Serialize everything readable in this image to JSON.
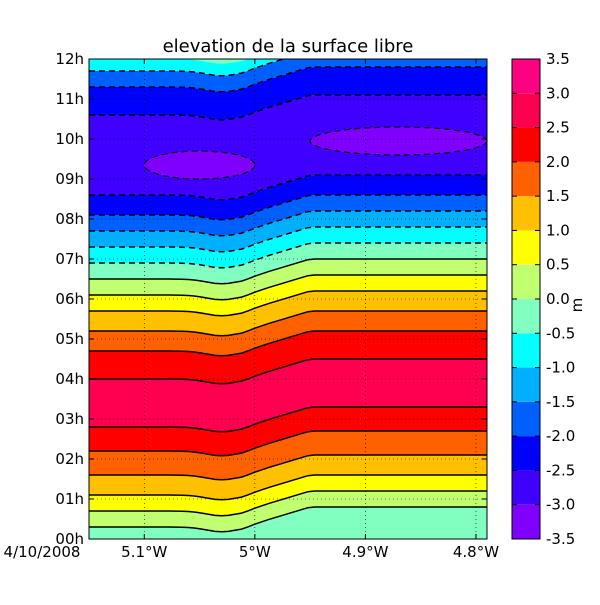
{
  "chart_data": {
    "type": "heatmap",
    "title": "elevation de la surface libre",
    "x_ticks": [
      "5.1°W",
      "5°W",
      "4.9°W",
      "4.8°W"
    ],
    "y_ticks": [
      "00h",
      "01h",
      "02h",
      "03h",
      "04h",
      "05h",
      "06h",
      "07h",
      "08h",
      "09h",
      "10h",
      "11h",
      "12h"
    ],
    "x_corner_label": "4/10/2008",
    "colorbar": {
      "label": "m",
      "ticks": [
        "3.5",
        "3.0",
        "2.5",
        "2.0",
        "1.5",
        "1.0",
        "0.5",
        "0.0",
        "-0.5",
        "-1.0",
        "-1.5",
        "-2.0",
        "-2.5",
        "-3.0",
        "-3.5"
      ],
      "levels": [
        {
          "range": [
            -3.5,
            -3.0
          ],
          "color": "#8000ff"
        },
        {
          "range": [
            -3.0,
            -2.5
          ],
          "color": "#4000ff"
        },
        {
          "range": [
            -2.5,
            -2.0
          ],
          "color": "#0000ff"
        },
        {
          "range": [
            -2.0,
            -1.5
          ],
          "color": "#0060ff"
        },
        {
          "range": [
            -1.5,
            -1.0
          ],
          "color": "#00b0ff"
        },
        {
          "range": [
            -1.0,
            -0.5
          ],
          "color": "#00ffff"
        },
        {
          "range": [
            -0.5,
            0.0
          ],
          "color": "#80ffc0"
        },
        {
          "range": [
            0.0,
            0.5
          ],
          "color": "#c0ff70"
        },
        {
          "range": [
            0.5,
            1.0
          ],
          "color": "#ffff00"
        },
        {
          "range": [
            1.0,
            1.5
          ],
          "color": "#ffc000"
        },
        {
          "range": [
            1.5,
            2.0
          ],
          "color": "#ff6000"
        },
        {
          "range": [
            2.0,
            2.5
          ],
          "color": "#ff0000"
        },
        {
          "range": [
            2.5,
            3.0
          ],
          "color": "#ff0050"
        },
        {
          "range": [
            3.0,
            3.5
          ],
          "color": "#ff0080"
        }
      ]
    },
    "time_axis_hours": [
      0,
      12
    ],
    "x_axis_deg_west": [
      5.15,
      4.79
    ],
    "elevation_bands_by_time": [
      {
        "t_hours": [
          0.0,
          0.3
        ],
        "value_range": [
          -0.5,
          0.0
        ]
      },
      {
        "t_hours": [
          0.3,
          0.7
        ],
        "value_range": [
          0.0,
          0.5
        ]
      },
      {
        "t_hours": [
          0.7,
          1.1
        ],
        "value_range": [
          0.5,
          1.0
        ]
      },
      {
        "t_hours": [
          1.1,
          1.6
        ],
        "value_range": [
          1.0,
          1.5
        ]
      },
      {
        "t_hours": [
          1.6,
          2.2
        ],
        "value_range": [
          1.5,
          2.0
        ]
      },
      {
        "t_hours": [
          2.2,
          2.8
        ],
        "value_range": [
          2.0,
          2.5
        ]
      },
      {
        "t_hours": [
          2.8,
          4.0
        ],
        "value_range": [
          2.5,
          3.0
        ]
      },
      {
        "t_hours": [
          4.0,
          4.7
        ],
        "value_range": [
          2.0,
          2.5
        ]
      },
      {
        "t_hours": [
          4.7,
          5.2
        ],
        "value_range": [
          1.5,
          2.0
        ]
      },
      {
        "t_hours": [
          5.2,
          5.7
        ],
        "value_range": [
          1.0,
          1.5
        ]
      },
      {
        "t_hours": [
          5.7,
          6.1
        ],
        "value_range": [
          0.5,
          1.0
        ]
      },
      {
        "t_hours": [
          6.1,
          6.5
        ],
        "value_range": [
          0.0,
          0.5
        ]
      },
      {
        "t_hours": [
          6.5,
          6.9
        ],
        "value_range": [
          -0.5,
          0.0
        ]
      },
      {
        "t_hours": [
          6.9,
          7.3
        ],
        "value_range": [
          -1.0,
          -0.5
        ]
      },
      {
        "t_hours": [
          7.3,
          7.7
        ],
        "value_range": [
          -1.5,
          -1.0
        ]
      },
      {
        "t_hours": [
          7.7,
          8.1
        ],
        "value_range": [
          -2.0,
          -1.5
        ]
      },
      {
        "t_hours": [
          8.1,
          8.6
        ],
        "value_range": [
          -2.5,
          -2.0
        ]
      },
      {
        "t_hours": [
          8.6,
          10.6
        ],
        "value_range": [
          -3.0,
          -2.5
        ]
      },
      {
        "t_hours": [
          10.6,
          11.3
        ],
        "value_range": [
          -2.5,
          -2.0
        ]
      },
      {
        "t_hours": [
          11.3,
          11.7
        ],
        "value_range": [
          -2.0,
          -1.5
        ]
      },
      {
        "t_hours": [
          11.7,
          12.0
        ],
        "value_range": [
          -1.0,
          -0.5
        ]
      }
    ],
    "minimum_patches": [
      {
        "value_range": [
          -3.5,
          -3.0
        ],
        "t_hours": [
          9.0,
          9.7
        ],
        "x_deg_west": [
          5.1,
          5.0
        ]
      },
      {
        "value_range": [
          -3.5,
          -3.0
        ],
        "t_hours": [
          9.6,
          10.3
        ],
        "x_deg_west": [
          4.95,
          4.79
        ]
      }
    ],
    "contour_style": {
      "positive": "solid",
      "negative": "dashed"
    },
    "grid": true
  }
}
